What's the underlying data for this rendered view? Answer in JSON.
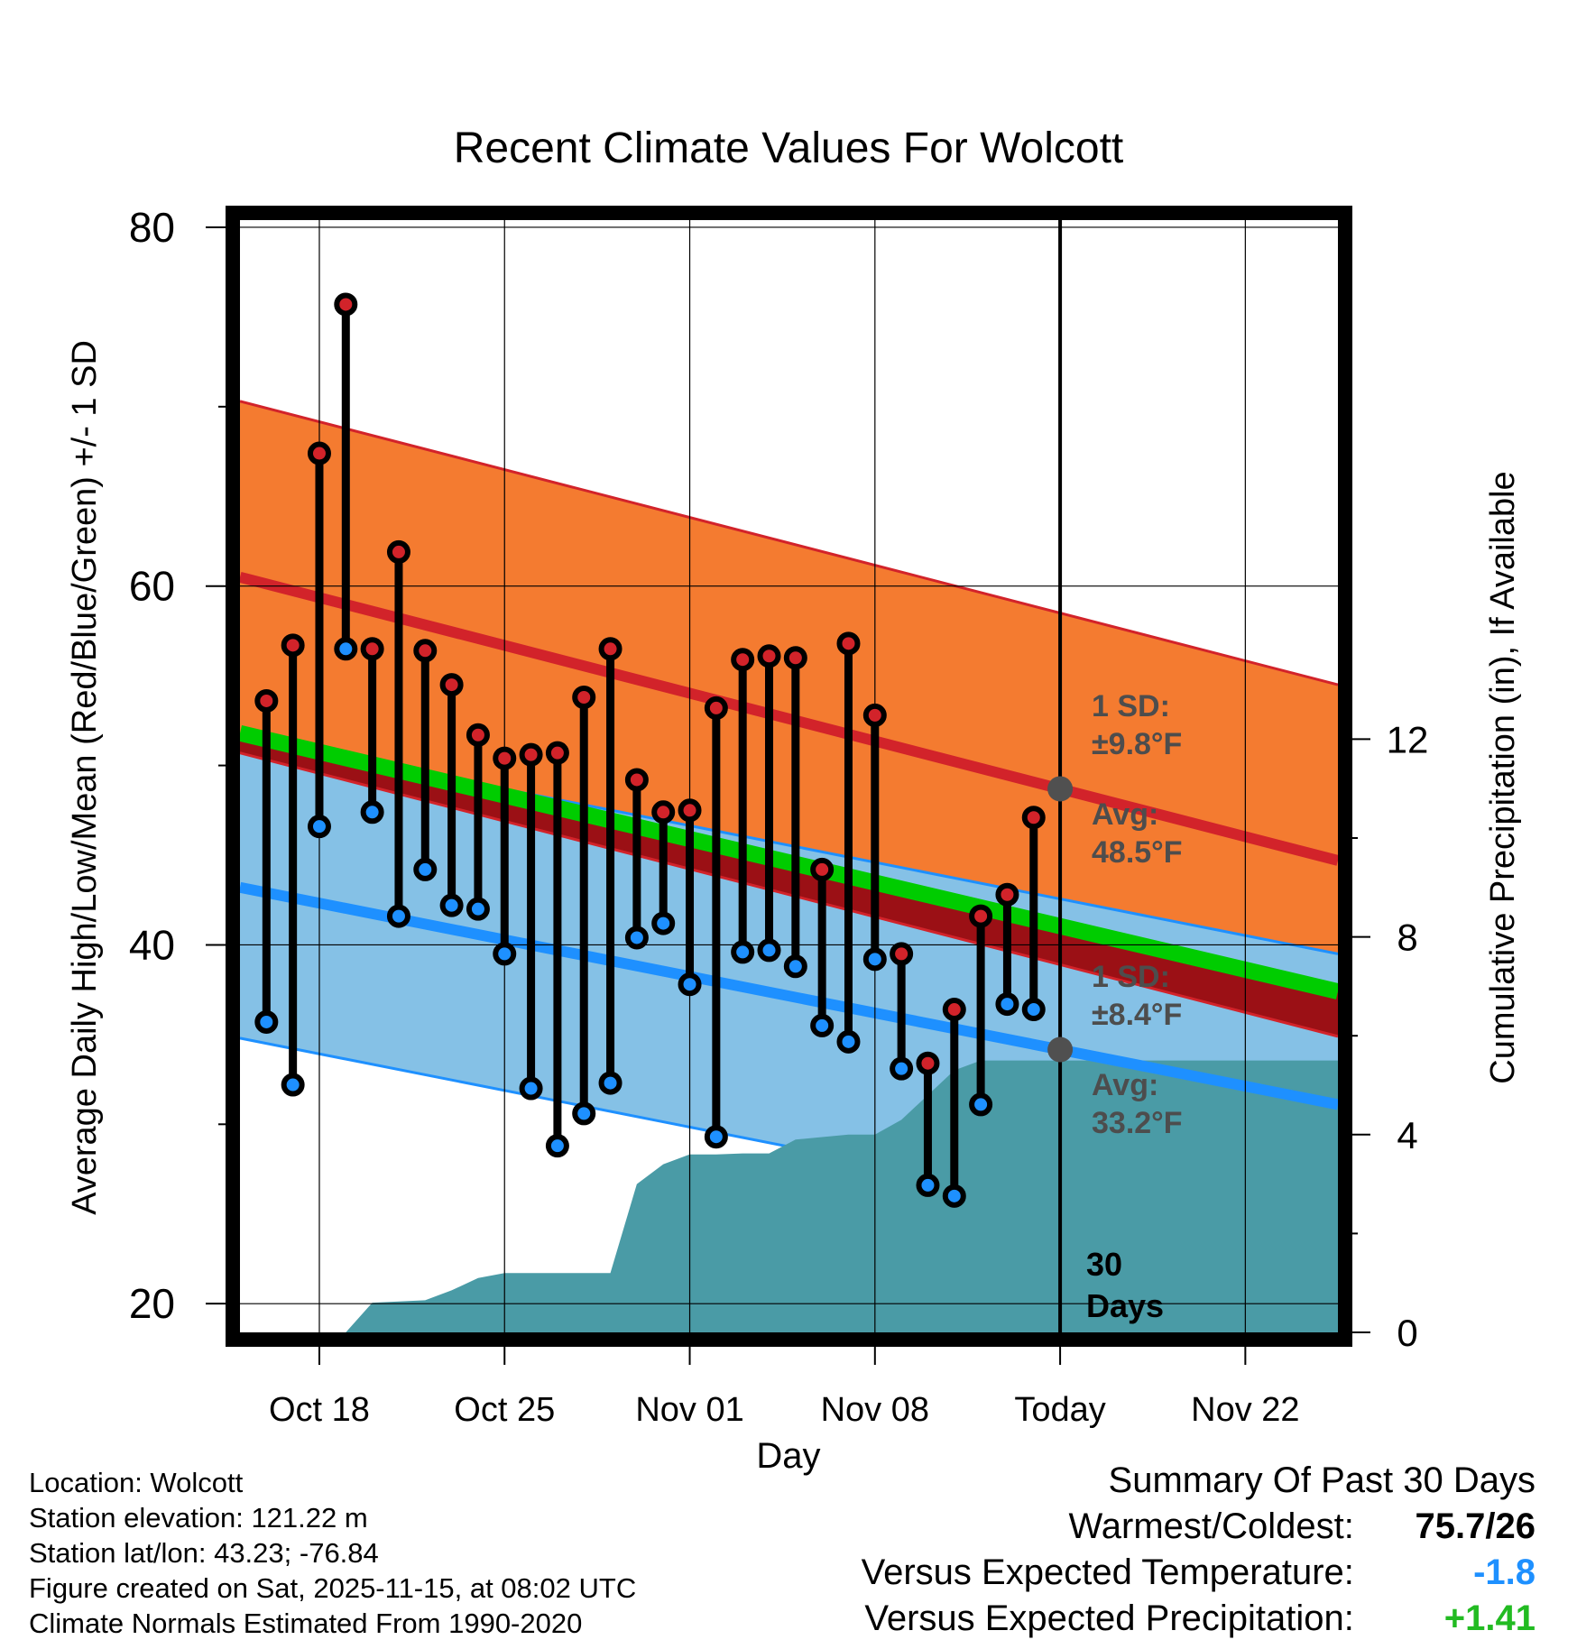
{
  "chart_data": {
    "type": "range-bar",
    "title": "Recent Climate Values For Wolcott",
    "xlabel": "Day",
    "ylabel": "Average Daily High/Low/Mean (Red/Blue/Green) +/- 1 SD",
    "ylabel_right": "Cumulative Precipitation (in), If Available",
    "ylim": [
      18.4,
      80.4
    ],
    "yticks": [
      "20",
      "40",
      "60",
      "80"
    ],
    "ylim_right": [
      0,
      22.5
    ],
    "yticks_right": [
      "0",
      "4",
      "8",
      "12"
    ],
    "xlim": [
      0,
      41.5
    ],
    "xticks": [
      {
        "day": 3,
        "label": "Oct 18"
      },
      {
        "day": 10,
        "label": "Oct 25"
      },
      {
        "day": 17,
        "label": "Nov 01"
      },
      {
        "day": 24,
        "label": "Nov 08"
      },
      {
        "day": 31,
        "label": "Today"
      },
      {
        "day": 38,
        "label": "Nov 22"
      }
    ],
    "today_day": 31,
    "days": [
      1,
      2,
      3,
      4,
      5,
      6,
      7,
      8,
      9,
      10,
      11,
      12,
      13,
      14,
      15,
      16,
      17,
      18,
      19,
      20,
      21,
      22,
      23,
      24,
      25,
      26,
      27,
      28,
      29,
      30
    ],
    "highs": [
      53.6,
      56.7,
      67.4,
      75.7,
      56.5,
      61.9,
      56.4,
      54.5,
      51.7,
      50.4,
      50.6,
      50.7,
      53.8,
      56.5,
      49.2,
      47.4,
      47.5,
      53.2,
      55.9,
      56.1,
      56.0,
      44.2,
      56.8,
      52.8,
      39.5,
      33.4,
      36.4,
      41.6,
      42.8,
      47.1
    ],
    "lows": [
      35.7,
      32.2,
      46.6,
      56.5,
      47.4,
      41.6,
      44.2,
      42.2,
      42.0,
      39.5,
      32.0,
      28.8,
      30.6,
      32.3,
      40.4,
      41.2,
      37.8,
      29.3,
      39.6,
      39.7,
      38.8,
      35.5,
      34.6,
      39.2,
      33.1,
      26.6,
      26.0,
      31.1,
      36.7,
      36.4
    ],
    "series": [
      {
        "name": "High normal",
        "start": 60.5,
        "end": 44.7,
        "sd": 9.8,
        "color": "#d2232a"
      },
      {
        "name": "Mean normal",
        "start": 51.8,
        "end": 37.4,
        "color": "#00cc00"
      },
      {
        "name": "Low normal",
        "start": 43.2,
        "end": 31.1,
        "sd": 8.4,
        "color": "#1e90ff"
      }
    ],
    "precipitation": {
      "color": "#4a9ba6",
      "days": [
        4,
        5,
        7,
        8,
        9,
        10,
        11,
        12,
        13,
        14,
        15,
        16,
        17,
        18,
        19,
        20,
        21,
        22,
        23,
        24,
        25,
        26,
        27,
        28,
        29,
        30,
        31,
        41.5
      ],
      "values": [
        0.0,
        0.6,
        0.65,
        0.85,
        1.1,
        1.2,
        1.2,
        1.2,
        1.2,
        1.2,
        3.0,
        3.4,
        3.6,
        3.6,
        3.62,
        3.62,
        3.9,
        3.95,
        4.0,
        4.0,
        4.3,
        4.8,
        5.3,
        5.5,
        5.5,
        5.5,
        5.5,
        5.5
      ]
    },
    "annotations": {
      "high_sd_label": "1 SD:",
      "high_sd_value": "±9.8°F",
      "high_avg_label": "Avg:",
      "high_avg_value": "48.5°F",
      "low_sd_label": "1 SD:",
      "low_sd_value": "±8.4°F",
      "low_avg_label": "Avg:",
      "low_avg_value": "33.2°F",
      "days_count": "30",
      "days_word": "Days"
    }
  },
  "info": {
    "location": "Location: Wolcott",
    "elevation": "Station elevation: 121.22 m",
    "latlon": "Station lat/lon: 43.23; -76.84",
    "created": "Figure created on Sat, 2025-11-15, at 08:02 UTC",
    "normals": "Climate Normals Estimated From 1990-2020"
  },
  "summary": {
    "title": "Summary Of Past 30 Days",
    "warmest_label": "Warmest/Coldest:",
    "warmest_value": "75.7/26",
    "temp_label": "Versus Expected Temperature:",
    "temp_value": "-1.8",
    "temp_color": "#1e90ff",
    "precip_label": "Versus Expected Precipitation:",
    "precip_value": "+1.41",
    "precip_color": "#22bb22"
  }
}
